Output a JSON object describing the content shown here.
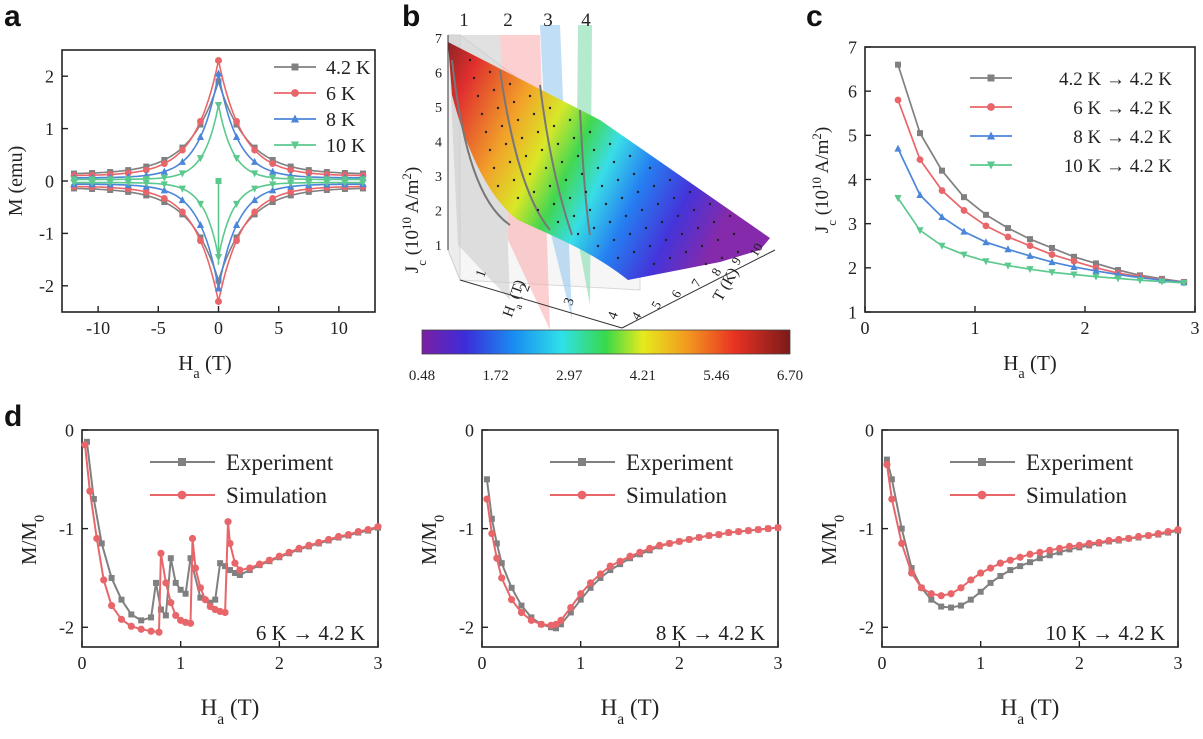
{
  "panel_labels": {
    "a": "a",
    "b": "b",
    "c": "c",
    "d": "d"
  },
  "chart_data": [
    {
      "id": "a",
      "type": "line",
      "xlabel": "H",
      "xlabel_sub": "a",
      "xlabel_unit": "(T)",
      "ylabel": "M (emu)",
      "xlim": [
        -13,
        13
      ],
      "ylim": [
        -2.5,
        2.5
      ],
      "xticks": [
        -10,
        -5,
        0,
        5,
        10
      ],
      "yticks": [
        -2,
        -1,
        0,
        1,
        2
      ],
      "legend_position": "top-right",
      "series": [
        {
          "name": "4.2 K",
          "color": "#808080",
          "marker": "square",
          "Mmax": 1.9,
          "decay": 2.4,
          "tail": 0.13
        },
        {
          "name": "6 K",
          "color": "#e8666a",
          "marker": "circle",
          "Mmax": 2.3,
          "decay": 2.0,
          "tail": 0.1
        },
        {
          "name": "8 K",
          "color": "#4c86d9",
          "marker": "triangle-up",
          "Mmax": 2.05,
          "decay": 1.6,
          "tail": 0.06
        },
        {
          "name": "10 K",
          "color": "#5bc98d",
          "marker": "triangle-down",
          "Mmax": 1.45,
          "decay": 1.2,
          "tail": 0.03
        }
      ]
    },
    {
      "id": "b",
      "type": "surface3d",
      "zlabel": "J",
      "zlabel_sub": "c",
      "zlabel_unit": "(10",
      "zlabel_exp": "10",
      "zlabel_rest": " A/m",
      "zlabel_exp2": "2",
      "zlabel_close": ")",
      "xlabel": "H",
      "xlabel_sub": "a",
      "xlabel_unit": "(T)",
      "ylabel": "T (K)",
      "zticks": [
        1,
        2,
        3,
        4,
        5,
        6,
        7
      ],
      "xticks": [
        1,
        2,
        3,
        4
      ],
      "yticks": [
        4,
        5,
        6,
        7,
        8,
        9,
        10
      ],
      "plane_labels": [
        "1",
        "2",
        "3",
        "4"
      ],
      "colorbar_ticks": [
        "0.48",
        "1.72",
        "2.97",
        "4.21",
        "5.46",
        "6.70"
      ],
      "colorbar_range": [
        0.48,
        6.7
      ]
    },
    {
      "id": "c",
      "type": "line",
      "xlabel": "H",
      "xlabel_sub": "a",
      "xlabel_unit": "(T)",
      "ylabel": "J",
      "ylabel_sub": "c",
      "ylabel_unit": "(10",
      "ylabel_exp": "10",
      "ylabel_rest": " A/m",
      "ylabel_exp2": "2",
      "ylabel_close": ")",
      "xlim": [
        0,
        3
      ],
      "ylim": [
        1,
        7
      ],
      "xticks": [
        0,
        1,
        2,
        3
      ],
      "yticks": [
        1,
        2,
        3,
        4,
        5,
        6,
        7
      ],
      "legend_position": "top-right",
      "x": [
        0.3,
        0.5,
        0.7,
        0.9,
        1.1,
        1.3,
        1.5,
        1.7,
        1.9,
        2.1,
        2.3,
        2.5,
        2.7,
        2.9
      ],
      "series": [
        {
          "name": "4.2 K → 4.2 K",
          "color": "#808080",
          "marker": "square",
          "values": [
            6.6,
            5.05,
            4.2,
            3.6,
            3.2,
            2.9,
            2.65,
            2.45,
            2.25,
            2.1,
            1.95,
            1.83,
            1.75,
            1.68
          ]
        },
        {
          "name": "6 K → 4.2 K",
          "color": "#e8666a",
          "marker": "circle",
          "values": [
            5.8,
            4.45,
            3.75,
            3.3,
            2.95,
            2.7,
            2.5,
            2.3,
            2.15,
            2.0,
            1.88,
            1.8,
            1.73,
            1.67
          ]
        },
        {
          "name": "8 K → 4.2 K",
          "color": "#4c86d9",
          "marker": "triangle-up",
          "values": [
            4.7,
            3.65,
            3.15,
            2.82,
            2.58,
            2.42,
            2.27,
            2.13,
            2.02,
            1.93,
            1.85,
            1.78,
            1.72,
            1.67
          ]
        },
        {
          "name": "10 K → 4.2 K",
          "color": "#5bc98d",
          "marker": "triangle-down",
          "values": [
            3.58,
            2.85,
            2.5,
            2.3,
            2.15,
            2.05,
            1.97,
            1.9,
            1.85,
            1.8,
            1.76,
            1.72,
            1.69,
            1.66
          ]
        }
      ]
    },
    {
      "id": "d1",
      "type": "line",
      "xlabel": "H",
      "xlabel_sub": "a",
      "xlabel_unit": "(T)",
      "ylabel": "M/M",
      "ylabel_sub": "0",
      "xlim": [
        0,
        3
      ],
      "ylim": [
        -2.2,
        0
      ],
      "xticks": [
        0,
        1,
        2,
        3
      ],
      "yticks": [
        0,
        -1,
        -2
      ],
      "annotation": "6 K → 4.2 K",
      "series": [
        {
          "name": "Experiment",
          "color": "#808080",
          "marker": "square",
          "x": [
            0.05,
            0.12,
            0.2,
            0.3,
            0.4,
            0.5,
            0.6,
            0.7,
            0.75,
            0.8,
            0.85,
            0.9,
            0.95,
            1.0,
            1.05,
            1.1,
            1.2,
            1.3,
            1.35,
            1.4,
            1.45,
            1.5,
            1.55,
            1.6,
            1.7,
            1.8,
            1.9,
            2.0,
            2.1,
            2.2,
            2.3,
            2.4,
            2.5,
            2.6,
            2.7,
            2.8,
            2.9,
            3.0
          ],
          "y": [
            -0.12,
            -0.7,
            -1.15,
            -1.5,
            -1.72,
            -1.87,
            -1.93,
            -1.9,
            -1.55,
            -1.82,
            -1.88,
            -1.3,
            -1.55,
            -1.62,
            -1.66,
            -1.3,
            -1.7,
            -1.75,
            -1.72,
            -1.35,
            -1.38,
            -1.42,
            -1.45,
            -1.47,
            -1.42,
            -1.37,
            -1.33,
            -1.29,
            -1.25,
            -1.21,
            -1.18,
            -1.15,
            -1.12,
            -1.09,
            -1.07,
            -1.04,
            -1.02,
            -0.99
          ]
        },
        {
          "name": "Simulation",
          "color": "#e8666a",
          "marker": "circle",
          "x": [
            0.03,
            0.08,
            0.15,
            0.22,
            0.3,
            0.4,
            0.5,
            0.6,
            0.7,
            0.78,
            0.8,
            0.85,
            0.9,
            0.95,
            1.0,
            1.05,
            1.1,
            1.12,
            1.15,
            1.2,
            1.25,
            1.3,
            1.35,
            1.4,
            1.45,
            1.48,
            1.5,
            1.55,
            1.6,
            1.7,
            1.8,
            1.9,
            2.0,
            2.1,
            2.2,
            2.3,
            2.4,
            2.5,
            2.6,
            2.7,
            2.8,
            2.9,
            3.0
          ],
          "y": [
            -0.15,
            -0.62,
            -1.1,
            -1.52,
            -1.78,
            -1.92,
            -1.99,
            -2.02,
            -2.04,
            -2.05,
            -1.25,
            -1.55,
            -1.75,
            -1.88,
            -1.93,
            -1.95,
            -1.96,
            -1.1,
            -1.4,
            -1.6,
            -1.72,
            -1.79,
            -1.82,
            -1.84,
            -1.85,
            -0.93,
            -1.15,
            -1.35,
            -1.42,
            -1.4,
            -1.36,
            -1.32,
            -1.28,
            -1.24,
            -1.2,
            -1.17,
            -1.14,
            -1.11,
            -1.08,
            -1.06,
            -1.03,
            -1.01,
            -0.98
          ]
        }
      ]
    },
    {
      "id": "d2",
      "type": "line",
      "xlabel": "H",
      "xlabel_sub": "a",
      "xlabel_unit": "(T)",
      "ylabel": "M/M",
      "ylabel_sub": "0",
      "xlim": [
        0,
        3
      ],
      "ylim": [
        -2.2,
        0
      ],
      "xticks": [
        0,
        1,
        2,
        3
      ],
      "yticks": [
        0,
        -1,
        -2
      ],
      "annotation": "8 K → 4.2 K",
      "series": [
        {
          "name": "Experiment",
          "color": "#808080",
          "marker": "square",
          "x": [
            0.05,
            0.1,
            0.15,
            0.2,
            0.3,
            0.4,
            0.5,
            0.6,
            0.7,
            0.75,
            0.8,
            0.9,
            1.0,
            1.1,
            1.2,
            1.3,
            1.4,
            1.5,
            1.6,
            1.7,
            1.8,
            1.9,
            2.0,
            2.1,
            2.2,
            2.3,
            2.4,
            2.5,
            2.6,
            2.7,
            2.8,
            2.9,
            3.0
          ],
          "y": [
            -0.5,
            -0.9,
            -1.15,
            -1.35,
            -1.6,
            -1.78,
            -1.9,
            -1.97,
            -2.0,
            -2.01,
            -1.97,
            -1.85,
            -1.72,
            -1.6,
            -1.5,
            -1.42,
            -1.36,
            -1.3,
            -1.26,
            -1.22,
            -1.18,
            -1.15,
            -1.13,
            -1.11,
            -1.09,
            -1.07,
            -1.06,
            -1.04,
            -1.03,
            -1.02,
            -1.01,
            -1.0,
            -0.99
          ]
        },
        {
          "name": "Simulation",
          "color": "#e8666a",
          "marker": "circle",
          "x": [
            0.05,
            0.1,
            0.15,
            0.2,
            0.3,
            0.4,
            0.5,
            0.6,
            0.7,
            0.75,
            0.8,
            0.9,
            1.0,
            1.1,
            1.2,
            1.3,
            1.4,
            1.5,
            1.6,
            1.7,
            1.8,
            1.9,
            2.0,
            2.1,
            2.2,
            2.3,
            2.4,
            2.5,
            2.6,
            2.7,
            2.8,
            2.9,
            3.0
          ],
          "y": [
            -0.7,
            -1.05,
            -1.3,
            -1.5,
            -1.72,
            -1.85,
            -1.93,
            -1.97,
            -1.98,
            -1.97,
            -1.93,
            -1.8,
            -1.66,
            -1.55,
            -1.46,
            -1.38,
            -1.33,
            -1.28,
            -1.24,
            -1.2,
            -1.17,
            -1.15,
            -1.13,
            -1.11,
            -1.09,
            -1.07,
            -1.06,
            -1.04,
            -1.03,
            -1.02,
            -1.01,
            -1.0,
            -0.99
          ]
        }
      ]
    },
    {
      "id": "d3",
      "type": "line",
      "xlabel": "H",
      "xlabel_sub": "a",
      "xlabel_unit": "(T)",
      "ylabel": "M/M",
      "ylabel_sub": "0",
      "xlim": [
        0,
        3
      ],
      "ylim": [
        -2.2,
        0
      ],
      "xticks": [
        0,
        1,
        2,
        3
      ],
      "yticks": [
        0,
        -1,
        -2
      ],
      "annotation": "10 K → 4.2 K",
      "series": [
        {
          "name": "Experiment",
          "color": "#808080",
          "marker": "square",
          "x": [
            0.05,
            0.1,
            0.2,
            0.3,
            0.4,
            0.5,
            0.6,
            0.7,
            0.8,
            0.9,
            1.0,
            1.1,
            1.2,
            1.3,
            1.4,
            1.5,
            1.6,
            1.7,
            1.8,
            1.9,
            2.0,
            2.1,
            2.2,
            2.3,
            2.4,
            2.5,
            2.6,
            2.7,
            2.8,
            2.9,
            3.0
          ],
          "y": [
            -0.3,
            -0.5,
            -1.0,
            -1.4,
            -1.6,
            -1.72,
            -1.79,
            -1.8,
            -1.78,
            -1.72,
            -1.64,
            -1.55,
            -1.48,
            -1.42,
            -1.38,
            -1.34,
            -1.3,
            -1.27,
            -1.24,
            -1.21,
            -1.19,
            -1.17,
            -1.15,
            -1.13,
            -1.12,
            -1.1,
            -1.09,
            -1.07,
            -1.06,
            -1.04,
            -1.02
          ]
        },
        {
          "name": "Simulation",
          "color": "#e8666a",
          "marker": "circle",
          "x": [
            0.05,
            0.1,
            0.2,
            0.3,
            0.4,
            0.5,
            0.6,
            0.7,
            0.8,
            0.9,
            1.0,
            1.1,
            1.2,
            1.3,
            1.4,
            1.5,
            1.6,
            1.7,
            1.8,
            1.9,
            2.0,
            2.1,
            2.2,
            2.3,
            2.4,
            2.5,
            2.6,
            2.7,
            2.8,
            2.9,
            3.0
          ],
          "y": [
            -0.35,
            -0.7,
            -1.15,
            -1.45,
            -1.6,
            -1.66,
            -1.68,
            -1.66,
            -1.6,
            -1.52,
            -1.45,
            -1.4,
            -1.35,
            -1.32,
            -1.29,
            -1.26,
            -1.24,
            -1.22,
            -1.2,
            -1.18,
            -1.17,
            -1.15,
            -1.14,
            -1.12,
            -1.11,
            -1.1,
            -1.08,
            -1.07,
            -1.05,
            -1.03,
            -1.01
          ]
        }
      ]
    }
  ]
}
